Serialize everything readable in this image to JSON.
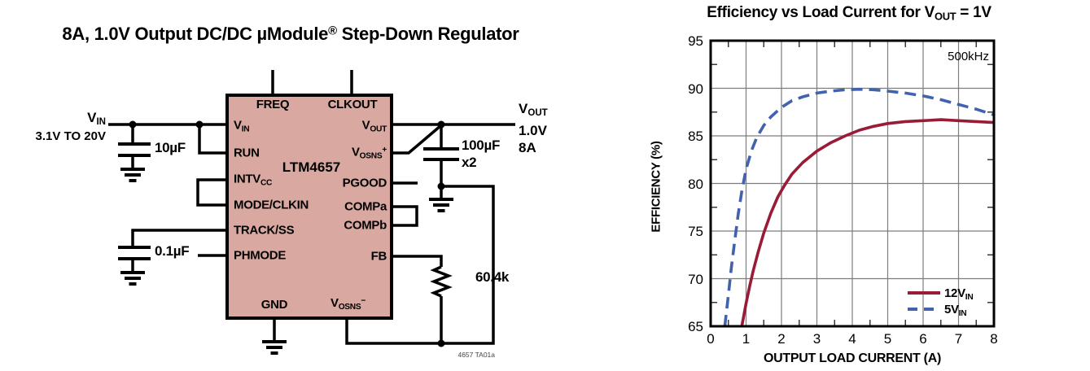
{
  "page": {
    "background": "#ffffff"
  },
  "circuit": {
    "title": {
      "pre": "8A, 1.0V Output DC/DC µModule",
      "sup": "®",
      "post": " Step-Down Regulator"
    },
    "chip": {
      "name": "LTM4657",
      "fill_color": "#d9a8a0"
    },
    "pins": {
      "freq": {
        "text": "FREQ"
      },
      "clkout": {
        "text": "CLKOUT"
      },
      "vin": {
        "base": "V",
        "sub": "IN"
      },
      "run": {
        "text": "RUN"
      },
      "intvcc": {
        "base": "INTV",
        "sub": "CC"
      },
      "mode_clkin": {
        "text": "MODE/CLKIN"
      },
      "track_ss": {
        "text": "TRACK/SS"
      },
      "phmode": {
        "text": "PHMODE"
      },
      "gnd": {
        "text": "GND"
      },
      "vosns_minus": {
        "base": "V",
        "sub": "OSNS",
        "sup": "−"
      },
      "vout": {
        "base": "V",
        "sub": "OUT"
      },
      "vosns_plus": {
        "base": "V",
        "sub": "OSNS",
        "sup": "+"
      },
      "pgood": {
        "text": "PGOOD"
      },
      "compa": {
        "text": "COMPa"
      },
      "compb": {
        "text": "COMPb"
      },
      "fb": {
        "text": "FB"
      }
    },
    "input": {
      "label_base": "V",
      "label_sub": "IN",
      "range": "3.1V TO 20V"
    },
    "output": {
      "label_base": "V",
      "label_sub": "OUT",
      "voltage": "1.0V",
      "current": "8A"
    },
    "components": {
      "cin": "10µF",
      "css": "0.1µF",
      "cout": "100µF",
      "cout_mult": "x2",
      "rfb": "60.4k"
    },
    "note": "4657 TA01a"
  },
  "chart_data": {
    "type": "line",
    "title": {
      "pre": "Efficiency vs Load Current for V",
      "sub": "OUT",
      "post": " = 1V"
    },
    "annotation": "500kHz",
    "xlabel": "OUTPUT LOAD CURRENT (A)",
    "ylabel": "EFFICIENCY (%)",
    "xlim": [
      0,
      8
    ],
    "ylim": [
      65,
      95
    ],
    "xticks": [
      0,
      1,
      2,
      3,
      4,
      5,
      6,
      7,
      8
    ],
    "yticks": [
      65,
      70,
      75,
      80,
      85,
      90,
      95
    ],
    "x_minor_step": 0.5,
    "y_minor_step": 2.5,
    "grid": true,
    "grid_color": "#7d7d7d",
    "legend_position": "lower right",
    "series": [
      {
        "name_base": "12V",
        "name_sub": "IN",
        "color": "#9a1b37",
        "style": "solid",
        "points": [
          [
            0.88,
            65
          ],
          [
            1.0,
            67.4
          ],
          [
            1.1,
            69.2
          ],
          [
            1.2,
            70.8
          ],
          [
            1.35,
            72.9
          ],
          [
            1.5,
            74.8
          ],
          [
            1.7,
            76.9
          ],
          [
            1.9,
            78.6
          ],
          [
            2.1,
            79.9
          ],
          [
            2.3,
            81.0
          ],
          [
            2.6,
            82.2
          ],
          [
            3.0,
            83.4
          ],
          [
            3.4,
            84.3
          ],
          [
            3.8,
            85.0
          ],
          [
            4.2,
            85.6
          ],
          [
            4.6,
            86.0
          ],
          [
            5.0,
            86.3
          ],
          [
            5.5,
            86.5
          ],
          [
            6.0,
            86.6
          ],
          [
            6.5,
            86.7
          ],
          [
            7.0,
            86.6
          ],
          [
            7.5,
            86.5
          ],
          [
            8.0,
            86.4
          ]
        ]
      },
      {
        "name_base": "5V",
        "name_sub": "IN",
        "color": "#4162ad",
        "style": "dashed",
        "points": [
          [
            0.4,
            65
          ],
          [
            0.5,
            68.3
          ],
          [
            0.58,
            71.0
          ],
          [
            0.68,
            74.0
          ],
          [
            0.78,
            76.8
          ],
          [
            0.88,
            79.2
          ],
          [
            1.0,
            81.5
          ],
          [
            1.15,
            83.4
          ],
          [
            1.3,
            84.8
          ],
          [
            1.5,
            86.1
          ],
          [
            1.7,
            87.0
          ],
          [
            2.0,
            88.0
          ],
          [
            2.3,
            88.7
          ],
          [
            2.6,
            89.1
          ],
          [
            3.0,
            89.5
          ],
          [
            3.4,
            89.7
          ],
          [
            3.8,
            89.85
          ],
          [
            4.2,
            89.9
          ],
          [
            4.6,
            89.85
          ],
          [
            5.0,
            89.7
          ],
          [
            5.5,
            89.5
          ],
          [
            6.0,
            89.2
          ],
          [
            6.5,
            88.8
          ],
          [
            7.0,
            88.3
          ],
          [
            7.5,
            87.8
          ],
          [
            8.0,
            87.2
          ]
        ]
      }
    ]
  }
}
